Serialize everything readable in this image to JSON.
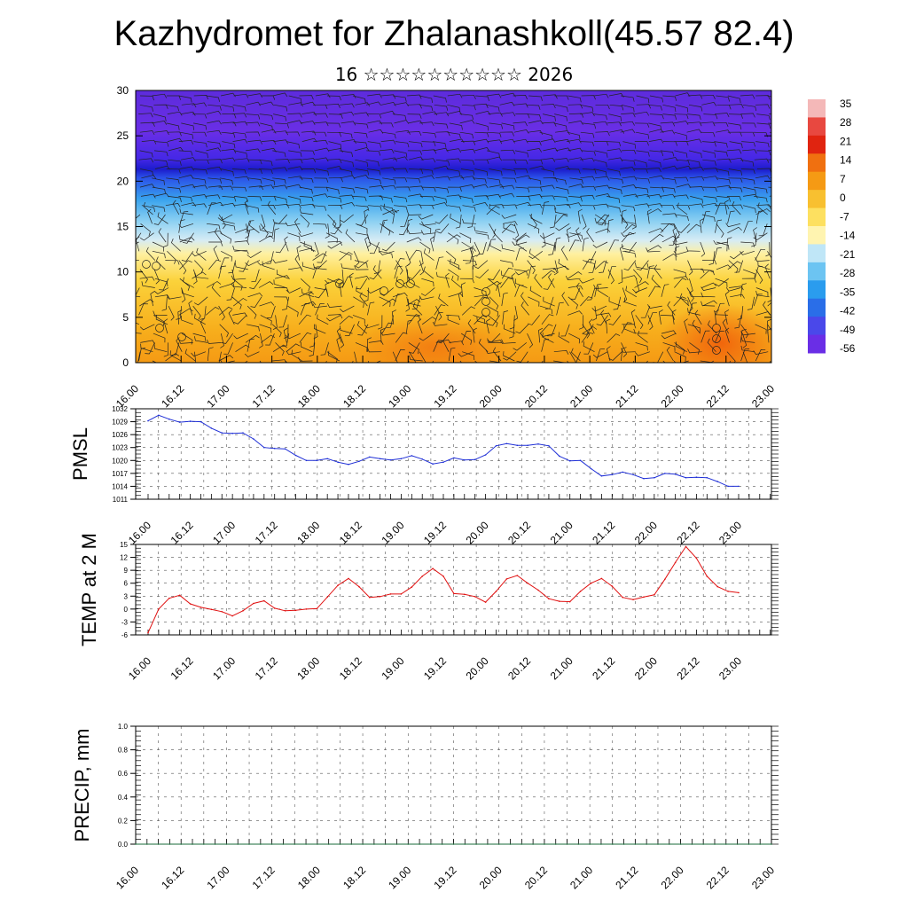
{
  "title": "Kazhydromet for Zhalanashkoll(45.57 82.4)",
  "subtitle": "16 ☆☆☆☆☆☆☆☆☆☆ 2026",
  "colors": {
    "pmsl_line": "#1f2fd6",
    "temp_line": "#e01010",
    "precip_line": "#1a6b3a",
    "grid": "#555555"
  },
  "x_tick_labels": [
    "16.00",
    "16.12",
    "17.00",
    "17.12",
    "18.00",
    "18.12",
    "19.00",
    "19.12",
    "20.00",
    "20.12",
    "21.00",
    "21.12",
    "22.00",
    "22.12",
    "23.00"
  ],
  "chart_data": [
    {
      "type": "heatmap",
      "title": "",
      "ylabel": "",
      "ylim": [
        0,
        30
      ],
      "yticks": [
        0,
        5,
        10,
        15,
        20,
        25,
        30
      ],
      "colorbar_ticks": [
        35,
        28,
        21,
        14,
        7,
        0,
        -7,
        -14,
        -21,
        -28,
        -35,
        -42,
        -49,
        -56
      ],
      "description_overlay": "wind barbs"
    },
    {
      "type": "line",
      "ylabel": "PMSL",
      "ylim": [
        1011,
        1032
      ],
      "yticks": [
        1011,
        1014,
        1017,
        1020,
        1023,
        1026,
        1029,
        1032
      ],
      "series": [
        {
          "values": [
            1029.2,
            1030.5,
            1029.6,
            1028.9,
            1029.1,
            1029.0,
            1027.5,
            1026.4,
            1026.3,
            1026.4,
            1025.0,
            1023.0,
            1022.8,
            1022.7,
            1021.2,
            1020.0,
            1020.0,
            1020.4,
            1019.6,
            1019.1,
            1019.8,
            1020.8,
            1020.4,
            1020.1,
            1020.4,
            1021.1,
            1020.3,
            1019.2,
            1019.6,
            1020.6,
            1020.1,
            1020.2,
            1021.3,
            1023.4,
            1023.9,
            1023.5,
            1023.5,
            1023.8,
            1023.4,
            1021.0,
            1019.9,
            1020.0,
            1018.1,
            1016.4,
            1016.7,
            1017.3,
            1016.7,
            1015.8,
            1016.0,
            1017.0,
            1016.8,
            1016.0,
            1016.1,
            1016.0,
            1015.1,
            1014.0,
            1014.0
          ]
        }
      ]
    },
    {
      "type": "line",
      "ylabel": "TEMP at 2 M",
      "ylim": [
        -6,
        15
      ],
      "yticks": [
        -6,
        -3,
        0,
        3,
        6,
        9,
        12,
        15
      ],
      "series": [
        {
          "values": [
            -5.5,
            0.0,
            2.5,
            3.2,
            1.2,
            0.4,
            -0.1,
            -0.6,
            -1.6,
            -0.4,
            1.3,
            1.9,
            0.2,
            -0.4,
            -0.3,
            0.0,
            0.1,
            2.8,
            5.5,
            7.1,
            5.2,
            2.7,
            2.9,
            3.5,
            3.5,
            5.1,
            7.6,
            9.4,
            7.6,
            3.6,
            3.4,
            2.9,
            1.6,
            4.1,
            7.0,
            7.8,
            6.0,
            4.4,
            2.4,
            1.8,
            1.7,
            4.1,
            6.0,
            7.1,
            5.3,
            2.7,
            2.2,
            2.8,
            3.3,
            6.9,
            10.8,
            14.5,
            11.8,
            7.6,
            5.2,
            4.1,
            3.8
          ]
        }
      ]
    },
    {
      "type": "line",
      "ylabel": "PRECIP, mm",
      "ylim": [
        0.0,
        1.0
      ],
      "yticks": [
        "0.0",
        "0.2",
        "0.4",
        "0.6",
        "0.8",
        "1.0"
      ],
      "series": [
        {
          "values": [
            0,
            0,
            0,
            0,
            0,
            0,
            0,
            0,
            0,
            0,
            0,
            0,
            0,
            0,
            0,
            0,
            0,
            0,
            0,
            0,
            0,
            0,
            0,
            0,
            0,
            0,
            0,
            0,
            0,
            0,
            0,
            0,
            0,
            0,
            0,
            0,
            0,
            0,
            0,
            0,
            0,
            0,
            0,
            0,
            0,
            0,
            0,
            0,
            0,
            0,
            0,
            0,
            0,
            0,
            0,
            0,
            0
          ]
        }
      ]
    }
  ]
}
